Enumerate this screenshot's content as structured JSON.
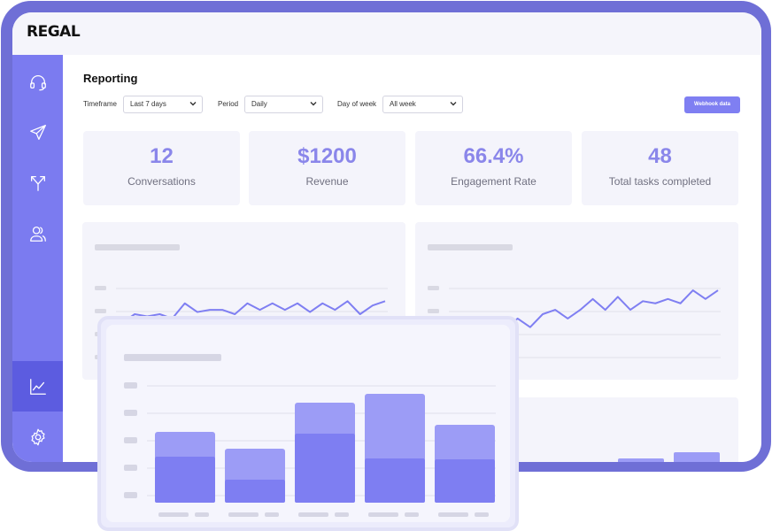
{
  "app": {
    "brand": "REGAL"
  },
  "sidebar": {
    "items": [
      {
        "name": "support",
        "icon": "headset-icon"
      },
      {
        "name": "campaigns",
        "icon": "send-icon"
      },
      {
        "name": "journeys",
        "icon": "split-arrows-icon"
      },
      {
        "name": "contacts",
        "icon": "users-icon"
      },
      {
        "name": "reporting",
        "icon": "chart-icon",
        "active": true
      },
      {
        "name": "settings",
        "icon": "gear-icon"
      }
    ]
  },
  "page": {
    "title": "Reporting"
  },
  "filters": {
    "timeframe_label": "Timeframe",
    "timeframe_value": "Last 7 days",
    "period_label": "Period",
    "period_value": "Daily",
    "day_label": "Day of week",
    "day_value": "All week"
  },
  "actions": {
    "webhook_label": "Webhook data"
  },
  "kpis": [
    {
      "value": "12",
      "label": "Conversations"
    },
    {
      "value": "$1200",
      "label": "Revenue"
    },
    {
      "value": "66.4%",
      "label": "Engagement Rate"
    },
    {
      "value": "48",
      "label": "Total tasks completed"
    }
  ],
  "colors": {
    "accent": "#7b7bf0",
    "kpi_value": "#8a86ea",
    "line": "#7f7ff2",
    "bar_light": "#9c9cf6",
    "bar_dark": "#7e7ef2"
  },
  "chart_data": [
    {
      "type": "line",
      "x": [
        0,
        1,
        2,
        3,
        4,
        5,
        6,
        7,
        8,
        9,
        10,
        11,
        12,
        13,
        14,
        15,
        16,
        17,
        18,
        19,
        20,
        21
      ],
      "series": [
        {
          "values": [
            16,
            20,
            19,
            20,
            18,
            25,
            21,
            22,
            22,
            20,
            25,
            22,
            25,
            22,
            25,
            21,
            25,
            22,
            26,
            20,
            24,
            26
          ]
        }
      ]
    },
    {
      "type": "line",
      "x": [
        0,
        1,
        2,
        3,
        4,
        5,
        6,
        7,
        8,
        9,
        10,
        11,
        12,
        13,
        14,
        15,
        16,
        17,
        18,
        19,
        20,
        21
      ],
      "series": [
        {
          "values": [
            12,
            14,
            13,
            18,
            13,
            18,
            14,
            20,
            22,
            18,
            22,
            27,
            22,
            28,
            22,
            26,
            25,
            27,
            25,
            31,
            27,
            31
          ]
        }
      ]
    },
    {
      "type": "bar",
      "categories": [
        "",
        "",
        "",
        "",
        ""
      ],
      "series": [
        {
          "values": [
            52,
            26,
            78,
            50,
            49
          ]
        },
        {
          "values": [
            28,
            35,
            35,
            73,
            39
          ]
        }
      ],
      "ylim": [
        0,
        130
      ]
    }
  ]
}
